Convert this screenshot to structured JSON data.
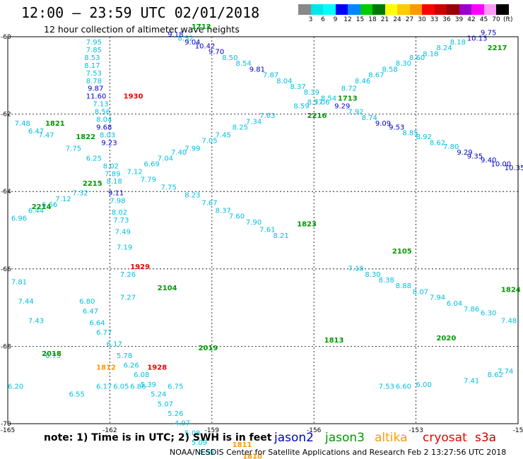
{
  "header": {
    "title": "12:00 — 23:59 UTC 02/01/2018",
    "subtitle": "12 hour collection of altimeter wave heights"
  },
  "colorbar": {
    "colors": [
      "#888888",
      "#00e5e5",
      "#00ffff",
      "#0000ff",
      "#0088ff",
      "#00cc00",
      "#007700",
      "#ffff00",
      "#ffcc00",
      "#ff9900",
      "#ff0000",
      "#cc0000",
      "#990000",
      "#9900cc",
      "#ff00ff",
      "#ff99ff",
      "#000000"
    ],
    "labels": [
      "3",
      "6",
      "9",
      "12",
      "15",
      "18",
      "21",
      "24",
      "27",
      "30",
      "33",
      "36",
      "39",
      "42",
      "45",
      "70"
    ],
    "unit": "(ft)"
  },
  "map": {
    "lon_range": [
      -165,
      -150
    ],
    "lat_range": [
      -70,
      -60
    ],
    "lon_ticks": [
      "-165",
      "-162",
      "-159",
      "-156",
      "-153",
      "-15"
    ],
    "lat_ticks": [
      "-60",
      "-62",
      "-64",
      "-66",
      "-68",
      "-70"
    ],
    "wave_labels": [
      {
        "v": "7.95",
        "lon": -162.7,
        "lat": -60.2,
        "c": "#00bfe0"
      },
      {
        "v": "7.85",
        "lon": -162.7,
        "lat": -60.4,
        "c": "#00bfe0"
      },
      {
        "v": "8.53",
        "lon": -162.75,
        "lat": -60.6,
        "c": "#00bfe0"
      },
      {
        "v": "8.17",
        "lon": -162.75,
        "lat": -60.8,
        "c": "#00bfe0"
      },
      {
        "v": "7.53",
        "lon": -162.7,
        "lat": -61.0,
        "c": "#00bfe0"
      },
      {
        "v": "8.78",
        "lon": -162.7,
        "lat": -61.2,
        "c": "#00bfe0"
      },
      {
        "v": "9.87",
        "lon": -162.65,
        "lat": -61.4,
        "c": "#0000cc"
      },
      {
        "v": "11.60",
        "lon": -162.7,
        "lat": -61.6,
        "c": "#0000cc"
      },
      {
        "v": "7.13",
        "lon": -162.5,
        "lat": -61.8,
        "c": "#00bfe0"
      },
      {
        "v": "8.56",
        "lon": -162.45,
        "lat": -62.0,
        "c": "#00bfe0"
      },
      {
        "v": "8.04",
        "lon": -162.4,
        "lat": -62.2,
        "c": "#00bfe0"
      },
      {
        "v": "9.68",
        "lon": -162.4,
        "lat": -62.4,
        "c": "#0000cc"
      },
      {
        "v": "8.03",
        "lon": -162.3,
        "lat": -62.6,
        "c": "#00bfe0"
      },
      {
        "v": "9.23",
        "lon": -162.25,
        "lat": -62.8,
        "c": "#0000cc"
      },
      {
        "v": "8.02",
        "lon": -162.2,
        "lat": -63.4,
        "c": "#00bfe0"
      },
      {
        "v": "7.89",
        "lon": -162.15,
        "lat": -63.6,
        "c": "#00bfe0"
      },
      {
        "v": "8.18",
        "lon": -162.1,
        "lat": -63.8,
        "c": "#00bfe0"
      },
      {
        "v": "9.11",
        "lon": -162.05,
        "lat": -64.1,
        "c": "#0000cc"
      },
      {
        "v": "7.98",
        "lon": -162.0,
        "lat": -64.3,
        "c": "#00bfe0"
      },
      {
        "v": "8.02",
        "lon": -161.95,
        "lat": -64.6,
        "c": "#00bfe0"
      },
      {
        "v": "7.73",
        "lon": -161.9,
        "lat": -64.8,
        "c": "#00bfe0"
      },
      {
        "v": "7.49",
        "lon": -161.85,
        "lat": -65.1,
        "c": "#00bfe0"
      },
      {
        "v": "7.19",
        "lon": -161.8,
        "lat": -65.5,
        "c": "#00bfe0"
      },
      {
        "v": "7.26",
        "lon": -161.7,
        "lat": -66.2,
        "c": "#00bfe0"
      },
      {
        "v": "7.27",
        "lon": -161.7,
        "lat": -66.8,
        "c": "#00bfe0"
      },
      {
        "v": "6.80",
        "lon": -162.9,
        "lat": -66.9,
        "c": "#00bfe0"
      },
      {
        "v": "6.47",
        "lon": -162.8,
        "lat": -67.15,
        "c": "#00bfe0"
      },
      {
        "v": "6.64",
        "lon": -162.6,
        "lat": -67.45,
        "c": "#00bfe0"
      },
      {
        "v": "6.77",
        "lon": -162.4,
        "lat": -67.7,
        "c": "#00bfe0"
      },
      {
        "v": "6.17",
        "lon": -162.1,
        "lat": -68.0,
        "c": "#00bfe0"
      },
      {
        "v": "5.78",
        "lon": -161.8,
        "lat": -68.3,
        "c": "#00bfe0"
      },
      {
        "v": "6.26",
        "lon": -161.6,
        "lat": -68.55,
        "c": "#00bfe0"
      },
      {
        "v": "6.08",
        "lon": -161.3,
        "lat": -68.8,
        "c": "#00bfe0"
      },
      {
        "v": "5.39",
        "lon": -161.1,
        "lat": -69.05,
        "c": "#00bfe0"
      },
      {
        "v": "5.24",
        "lon": -160.8,
        "lat": -69.3,
        "c": "#00bfe0"
      },
      {
        "v": "5.07",
        "lon": -160.6,
        "lat": -69.55,
        "c": "#00bfe0"
      },
      {
        "v": "5.26",
        "lon": -160.3,
        "lat": -69.8,
        "c": "#00bfe0"
      },
      {
        "v": "4.97",
        "lon": -160.1,
        "lat": -70.05,
        "c": "#00bfe0"
      },
      {
        "v": "5.08",
        "lon": -159.8,
        "lat": -70.3,
        "c": "#00bfe0"
      },
      {
        "v": "5.09",
        "lon": -159.6,
        "lat": -70.55,
        "c": "#00bfe0"
      },
      {
        "v": "4.89",
        "lon": -159.4,
        "lat": -70.8,
        "c": "#00bfe0"
      },
      {
        "v": "9.18",
        "lon": -160.3,
        "lat": -60.0,
        "c": "#0000cc"
      },
      {
        "v": "8.52",
        "lon": -160.0,
        "lat": -60.1,
        "c": "#00bfe0"
      },
      {
        "v": "9.04",
        "lon": -159.8,
        "lat": -60.2,
        "c": "#0000cc"
      },
      {
        "v": "10.42",
        "lon": -159.5,
        "lat": -60.3,
        "c": "#0000cc"
      },
      {
        "v": "9.70",
        "lon": -159.1,
        "lat": -60.45,
        "c": "#0000cc"
      },
      {
        "v": "8.50",
        "lon": -158.7,
        "lat": -60.6,
        "c": "#00bfe0"
      },
      {
        "v": "8.54",
        "lon": -158.3,
        "lat": -60.75,
        "c": "#00bfe0"
      },
      {
        "v": "9.81",
        "lon": -157.9,
        "lat": -60.9,
        "c": "#0000cc"
      },
      {
        "v": "7.87",
        "lon": -157.5,
        "lat": -61.05,
        "c": "#00bfe0"
      },
      {
        "v": "8.04",
        "lon": -157.1,
        "lat": -61.2,
        "c": "#00bfe0"
      },
      {
        "v": "8.37",
        "lon": -156.7,
        "lat": -61.35,
        "c": "#00bfe0"
      },
      {
        "v": "8.39",
        "lon": -156.3,
        "lat": -61.5,
        "c": "#00bfe0"
      },
      {
        "v": "7.06",
        "lon": -156.0,
        "lat": -61.75,
        "c": "#00bfe0"
      },
      {
        "v": "9.29",
        "lon": -155.4,
        "lat": -61.85,
        "c": "#0000cc"
      },
      {
        "v": "7.92",
        "lon": -155.0,
        "lat": -62.0,
        "c": "#00bfe0"
      },
      {
        "v": "8.74",
        "lon": -154.6,
        "lat": -62.15,
        "c": "#00bfe0"
      },
      {
        "v": "9.09",
        "lon": -154.2,
        "lat": -62.3,
        "c": "#0000cc"
      },
      {
        "v": "9.53",
        "lon": -153.8,
        "lat": -62.4,
        "c": "#0000cc"
      },
      {
        "v": "8.85",
        "lon": -153.4,
        "lat": -62.55,
        "c": "#00bfe0"
      },
      {
        "v": "8.92",
        "lon": -153.0,
        "lat": -62.65,
        "c": "#00bfe0"
      },
      {
        "v": "8.62",
        "lon": -152.6,
        "lat": -62.8,
        "c": "#00bfe0"
      },
      {
        "v": "7.80",
        "lon": -152.2,
        "lat": -62.9,
        "c": "#00bfe0"
      },
      {
        "v": "9.29",
        "lon": -151.8,
        "lat": -63.05,
        "c": "#0000cc"
      },
      {
        "v": "9.35",
        "lon": -151.5,
        "lat": -63.15,
        "c": "#0000cc"
      },
      {
        "v": "9.40",
        "lon": -151.1,
        "lat": -63.25,
        "c": "#0000cc"
      },
      {
        "v": "10.00",
        "lon": -150.8,
        "lat": -63.35,
        "c": "#0000cc"
      },
      {
        "v": "10.35",
        "lon": -150.4,
        "lat": -63.45,
        "c": "#0000cc"
      },
      {
        "v": "9.75",
        "lon": -151.1,
        "lat": -59.95,
        "c": "#0000cc"
      },
      {
        "v": "10.13",
        "lon": -151.5,
        "lat": -60.1,
        "c": "#0000cc"
      },
      {
        "v": "8.18",
        "lon": -152.0,
        "lat": -60.2,
        "c": "#00bfe0"
      },
      {
        "v": "8.24",
        "lon": -152.4,
        "lat": -60.35,
        "c": "#00bfe0"
      },
      {
        "v": "8.18",
        "lon": -152.8,
        "lat": -60.5,
        "c": "#00bfe0"
      },
      {
        "v": "8.60",
        "lon": -153.2,
        "lat": -60.6,
        "c": "#00bfe0"
      },
      {
        "v": "8.30",
        "lon": -153.6,
        "lat": -60.75,
        "c": "#00bfe0"
      },
      {
        "v": "8.58",
        "lon": -154.0,
        "lat": -60.9,
        "c": "#00bfe0"
      },
      {
        "v": "8.67",
        "lon": -154.4,
        "lat": -61.05,
        "c": "#00bfe0"
      },
      {
        "v": "8.46",
        "lon": -154.8,
        "lat": -61.2,
        "c": "#00bfe0"
      },
      {
        "v": "8.72",
        "lon": -155.2,
        "lat": -61.4,
        "c": "#00bfe0"
      },
      {
        "v": "8.54",
        "lon": -155.8,
        "lat": -61.65,
        "c": "#00bfe0"
      },
      {
        "v": "8.57",
        "lon": -156.2,
        "lat": -61.75,
        "c": "#00bfe0"
      },
      {
        "v": "8.59",
        "lon": -156.6,
        "lat": -61.85,
        "c": "#00bfe0"
      },
      {
        "v": "7.63",
        "lon": -157.6,
        "lat": -62.1,
        "c": "#00bfe0"
      },
      {
        "v": "7.34",
        "lon": -158.0,
        "lat": -62.25,
        "c": "#00bfe0"
      },
      {
        "v": "8.25",
        "lon": -158.4,
        "lat": -62.4,
        "c": "#00bfe0"
      },
      {
        "v": "7.45",
        "lon": -158.9,
        "lat": -62.6,
        "c": "#00bfe0"
      },
      {
        "v": "7.05",
        "lon": -159.3,
        "lat": -62.75,
        "c": "#00bfe0"
      },
      {
        "v": "7.99",
        "lon": -159.8,
        "lat": -62.95,
        "c": "#00bfe0"
      },
      {
        "v": "7.40",
        "lon": -160.2,
        "lat": -63.05,
        "c": "#00bfe0"
      },
      {
        "v": "7.04",
        "lon": -160.6,
        "lat": -63.2,
        "c": "#00bfe0"
      },
      {
        "v": "6.69",
        "lon": -161.0,
        "lat": -63.35,
        "c": "#00bfe0"
      },
      {
        "v": "7.12",
        "lon": -161.5,
        "lat": -63.55,
        "c": "#00bfe0"
      },
      {
        "v": "7.32",
        "lon": -163.1,
        "lat": -64.1,
        "c": "#00bfe0"
      },
      {
        "v": "7.12",
        "lon": -163.6,
        "lat": -64.25,
        "c": "#00bfe0"
      },
      {
        "v": "6.66",
        "lon": -164.0,
        "lat": -64.4,
        "c": "#00bfe0"
      },
      {
        "v": "6.44",
        "lon": -164.4,
        "lat": -64.55,
        "c": "#00bfe0"
      },
      {
        "v": "6.96",
        "lon": -164.9,
        "lat": -64.75,
        "c": "#00bfe0"
      },
      {
        "v": "7.48",
        "lon": -164.8,
        "lat": -62.3,
        "c": "#00bfe0"
      },
      {
        "v": "6.47",
        "lon": -164.4,
        "lat": -62.5,
        "c": "#00bfe0"
      },
      {
        "v": "7.47",
        "lon": -164.1,
        "lat": -62.6,
        "c": "#00bfe0"
      },
      {
        "v": "7.75",
        "lon": -163.3,
        "lat": -62.95,
        "c": "#00bfe0"
      },
      {
        "v": "6.25",
        "lon": -162.7,
        "lat": -63.2,
        "c": "#00bfe0"
      },
      {
        "v": "7.79",
        "lon": -161.1,
        "lat": -63.75,
        "c": "#00bfe0"
      },
      {
        "v": "7.75",
        "lon": -160.5,
        "lat": -63.95,
        "c": "#00bfe0"
      },
      {
        "v": "8.23",
        "lon": -159.8,
        "lat": -64.15,
        "c": "#00bfe0"
      },
      {
        "v": "7.67",
        "lon": -159.3,
        "lat": -64.35,
        "c": "#00bfe0"
      },
      {
        "v": "8.37",
        "lon": -158.9,
        "lat": -64.55,
        "c": "#00bfe0"
      },
      {
        "v": "7.60",
        "lon": -158.5,
        "lat": -64.7,
        "c": "#00bfe0"
      },
      {
        "v": "7.90",
        "lon": -158.0,
        "lat": -64.85,
        "c": "#00bfe0"
      },
      {
        "v": "7.61",
        "lon": -157.6,
        "lat": -65.05,
        "c": "#00bfe0"
      },
      {
        "v": "8.21",
        "lon": -157.2,
        "lat": -65.2,
        "c": "#00bfe0"
      },
      {
        "v": "7.18",
        "lon": -155.0,
        "lat": -66.05,
        "c": "#00bfe0"
      },
      {
        "v": "8.30",
        "lon": -154.5,
        "lat": -66.2,
        "c": "#00bfe0"
      },
      {
        "v": "8.38",
        "lon": -154.1,
        "lat": -66.35,
        "c": "#00bfe0"
      },
      {
        "v": "8.88",
        "lon": -153.6,
        "lat": -66.5,
        "c": "#00bfe0"
      },
      {
        "v": "8.07",
        "lon": -153.1,
        "lat": -66.65,
        "c": "#00bfe0"
      },
      {
        "v": "7.94",
        "lon": -152.6,
        "lat": -66.8,
        "c": "#00bfe0"
      },
      {
        "v": "6.04",
        "lon": -152.1,
        "lat": -66.95,
        "c": "#00bfe0"
      },
      {
        "v": "7.86",
        "lon": -151.6,
        "lat": -67.1,
        "c": "#00bfe0"
      },
      {
        "v": "6.30",
        "lon": -151.1,
        "lat": -67.2,
        "c": "#00bfe0"
      },
      {
        "v": "7.48",
        "lon": -150.5,
        "lat": -67.4,
        "c": "#00bfe0"
      },
      {
        "v": "7.81",
        "lon": -164.9,
        "lat": -66.4,
        "c": "#00bfe0"
      },
      {
        "v": "7.44",
        "lon": -164.7,
        "lat": -66.9,
        "c": "#00bfe0"
      },
      {
        "v": "7.43",
        "lon": -164.4,
        "lat": -67.4,
        "c": "#00bfe0"
      },
      {
        "v": "6.75",
        "lon": -163.9,
        "lat": -68.3,
        "c": "#00bfe0"
      },
      {
        "v": "6.55",
        "lon": -163.2,
        "lat": -69.3,
        "c": "#00bfe0"
      },
      {
        "v": "6.17",
        "lon": -162.4,
        "lat": -69.1,
        "c": "#00bfe0"
      },
      {
        "v": "6.05",
        "lon": -161.9,
        "lat": -69.1,
        "c": "#00bfe0"
      },
      {
        "v": "6.86",
        "lon": -161.4,
        "lat": -69.1,
        "c": "#00bfe0"
      },
      {
        "v": "6.75",
        "lon": -160.3,
        "lat": -69.1,
        "c": "#00bfe0"
      },
      {
        "v": "6.20",
        "lon": -165.0,
        "lat": -69.1,
        "c": "#00bfe0"
      },
      {
        "v": "7.74",
        "lon": -150.6,
        "lat": -68.7,
        "c": "#00bfe0"
      },
      {
        "v": "8.62",
        "lon": -150.9,
        "lat": -68.8,
        "c": "#00bfe0"
      },
      {
        "v": "7.41",
        "lon": -151.6,
        "lat": -68.95,
        "c": "#00bfe0"
      },
      {
        "v": "6.00",
        "lon": -153.0,
        "lat": -69.05,
        "c": "#00bfe0"
      },
      {
        "v": "6.60",
        "lon": -153.6,
        "lat": -69.1,
        "c": "#00bfe0"
      },
      {
        "v": "7.53",
        "lon": -154.1,
        "lat": -69.1,
        "c": "#00bfe0"
      }
    ],
    "pass_labels": [
      {
        "v": "1712",
        "lon": -159.6,
        "lat": -59.8,
        "c": "#009900"
      },
      {
        "v": "1930",
        "lon": -161.6,
        "lat": -61.6,
        "c": "#ee0000"
      },
      {
        "v": "1821",
        "lon": -163.9,
        "lat": -62.3,
        "c": "#009900"
      },
      {
        "v": "1822",
        "lon": -163.0,
        "lat": -62.65,
        "c": "#009900"
      },
      {
        "v": "2217",
        "lon": -150.9,
        "lat": -60.35,
        "c": "#009900"
      },
      {
        "v": "1713",
        "lon": -155.3,
        "lat": -61.65,
        "c": "#009900"
      },
      {
        "v": "2216",
        "lon": -156.2,
        "lat": -62.1,
        "c": "#009900"
      },
      {
        "v": "2215",
        "lon": -162.8,
        "lat": -63.85,
        "c": "#009900"
      },
      {
        "v": "2214",
        "lon": -164.3,
        "lat": -64.45,
        "c": "#009900"
      },
      {
        "v": "1823",
        "lon": -156.5,
        "lat": -64.9,
        "c": "#009900"
      },
      {
        "v": "2105",
        "lon": -153.7,
        "lat": -65.6,
        "c": "#009900"
      },
      {
        "v": "1929",
        "lon": -161.4,
        "lat": -66.0,
        "c": "#ee0000"
      },
      {
        "v": "2104",
        "lon": -160.6,
        "lat": -66.55,
        "c": "#009900"
      },
      {
        "v": "1824",
        "lon": -150.5,
        "lat": -66.6,
        "c": "#009900"
      },
      {
        "v": "2018",
        "lon": -164.0,
        "lat": -68.25,
        "c": "#009900"
      },
      {
        "v": "1812",
        "lon": -162.4,
        "lat": -68.6,
        "c": "#ff9900"
      },
      {
        "v": "1928",
        "lon": -160.9,
        "lat": -68.6,
        "c": "#ee0000"
      },
      {
        "v": "2019",
        "lon": -159.4,
        "lat": -68.1,
        "c": "#009900"
      },
      {
        "v": "1811",
        "lon": -158.4,
        "lat": -70.6,
        "c": "#ff9900"
      },
      {
        "v": "1810",
        "lon": -158.1,
        "lat": -70.9,
        "c": "#ff9900"
      },
      {
        "v": "2020",
        "lon": -152.4,
        "lat": -67.85,
        "c": "#009900"
      },
      {
        "v": "1813",
        "lon": -155.7,
        "lat": -67.9,
        "c": "#009900"
      }
    ]
  },
  "footer": {
    "note": "note: 1) Time is in UTC; 2) SWH is in feet",
    "legend": {
      "jason2": "jason2",
      "jason3": "jason3",
      "altika": "altika",
      "cryosat": "cryosat",
      "s3a": "s3a"
    },
    "credit": "NOAA/NESDIS Center for Satellite Applications and Research    Feb  2 13:27:56 UTC 2018"
  }
}
